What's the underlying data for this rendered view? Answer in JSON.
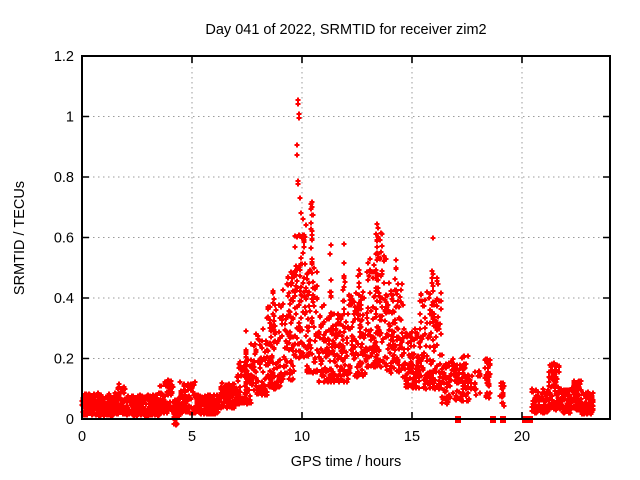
{
  "window": {
    "background": "#ffffff"
  },
  "chart_data": {
    "type": "scatter",
    "title": "Day 041 of 2022, SRMTID for receiver zim2",
    "xlabel": "GPS time / hours",
    "ylabel": "SRMTID / TECUs",
    "xlim": [
      0,
      24
    ],
    "ylim": [
      0,
      1.2
    ],
    "xticks": [
      0,
      5,
      10,
      15,
      20
    ],
    "yticks": [
      0,
      0.2,
      0.4,
      0.6,
      0.8,
      1,
      1.2
    ],
    "ytick_labels": [
      "0",
      "0.2",
      "0.4",
      "0.6",
      "0.8",
      "1",
      "1.2"
    ],
    "grid": {
      "visible": true,
      "style": "dotted",
      "color": "#9b9b9b",
      "x_lines": [
        5,
        10,
        15,
        20
      ],
      "y_lines": [
        0.2,
        0.4,
        0.6,
        0.8,
        1.0
      ]
    },
    "legend": {
      "visible": false
    },
    "series": [
      {
        "name": "SRMTID",
        "marker": "plus",
        "color": "#ff0000"
      }
    ],
    "marker_color": "#ff0000",
    "axis_color": "#000000",
    "band_segments": [
      [
        0.0,
        1.6,
        0.01,
        0.085,
        210,
        1.2
      ],
      [
        1.6,
        1.95,
        0.015,
        0.115,
        46,
        1.4
      ],
      [
        1.95,
        3.5,
        0.01,
        0.08,
        200,
        1.2
      ],
      [
        3.5,
        4.15,
        0.02,
        0.13,
        85,
        1.4
      ],
      [
        4.15,
        4.45,
        -0.022,
        0.07,
        40,
        1.0
      ],
      [
        4.45,
        5.15,
        0.02,
        0.125,
        90,
        1.4
      ],
      [
        5.15,
        6.3,
        0.015,
        0.08,
        150,
        1.2
      ],
      [
        6.3,
        7.0,
        0.035,
        0.12,
        90,
        1.2
      ],
      [
        7.0,
        7.7,
        0.05,
        0.2,
        90,
        1.5
      ],
      [
        7.7,
        8.4,
        0.08,
        0.3,
        90,
        1.6
      ],
      [
        8.4,
        9.1,
        0.1,
        0.38,
        90,
        1.6
      ],
      [
        9.1,
        9.65,
        0.13,
        0.48,
        75,
        1.5
      ],
      [
        9.65,
        10.15,
        0.2,
        0.62,
        80,
        1.3
      ],
      [
        10.15,
        10.75,
        0.15,
        0.5,
        80,
        1.6
      ],
      [
        10.75,
        11.45,
        0.12,
        0.38,
        90,
        1.5
      ],
      [
        11.45,
        12.1,
        0.12,
        0.35,
        85,
        1.4
      ],
      [
        12.1,
        12.9,
        0.14,
        0.42,
        105,
        1.5
      ],
      [
        12.9,
        13.85,
        0.17,
        0.55,
        130,
        1.5
      ],
      [
        13.85,
        14.6,
        0.15,
        0.45,
        100,
        1.5
      ],
      [
        14.6,
        15.35,
        0.1,
        0.3,
        100,
        1.3
      ],
      [
        15.35,
        16.0,
        0.1,
        0.42,
        80,
        1.5
      ],
      [
        16.0,
        16.35,
        0.1,
        0.45,
        45,
        1.6
      ],
      [
        16.35,
        17.1,
        0.05,
        0.2,
        70,
        1.3
      ],
      [
        17.1,
        17.6,
        0.06,
        0.21,
        45,
        1.3
      ],
      [
        17.6,
        18.1,
        0.07,
        0.16,
        18,
        1.0
      ],
      [
        18.3,
        18.55,
        0.07,
        0.2,
        30,
        1.2
      ],
      [
        19.0,
        19.2,
        0.04,
        0.12,
        15,
        1.0
      ],
      [
        20.45,
        21.2,
        0.02,
        0.1,
        100,
        1.2
      ],
      [
        21.2,
        21.7,
        0.03,
        0.185,
        70,
        1.4
      ],
      [
        21.7,
        22.25,
        0.02,
        0.1,
        70,
        1.2
      ],
      [
        22.25,
        22.7,
        0.03,
        0.14,
        60,
        1.4
      ],
      [
        22.7,
        23.25,
        0.015,
        0.09,
        70,
        1.2
      ]
    ],
    "spike_columns": [
      [
        7.45,
        0.18,
        0.3,
        6
      ],
      [
        8.7,
        0.3,
        0.43,
        8
      ],
      [
        9.5,
        0.35,
        0.5,
        8
      ],
      [
        10.45,
        0.5,
        0.72,
        14
      ],
      [
        11.3,
        0.38,
        0.59,
        8
      ],
      [
        11.9,
        0.35,
        0.6,
        10
      ],
      [
        12.6,
        0.35,
        0.5,
        8
      ],
      [
        13.4,
        0.45,
        0.65,
        14
      ],
      [
        13.6,
        0.4,
        0.62,
        10
      ],
      [
        14.25,
        0.4,
        0.55,
        8
      ],
      [
        15.95,
        0.3,
        0.65,
        14
      ],
      [
        16.15,
        0.25,
        0.55,
        8
      ],
      [
        17.35,
        0.1,
        0.21,
        8
      ],
      [
        18.45,
        0.08,
        0.2,
        8
      ]
    ],
    "outlier_points": [
      [
        9.82,
        1.054
      ],
      [
        9.84,
        1.04
      ],
      [
        9.85,
        1.008
      ],
      [
        9.86,
        0.995
      ],
      [
        9.79,
        0.906
      ],
      [
        9.77,
        0.873
      ],
      [
        9.84,
        0.787
      ],
      [
        9.8,
        0.777
      ],
      [
        9.9,
        0.73
      ],
      [
        9.95,
        0.68
      ],
      [
        10.05,
        0.66
      ],
      [
        10.2,
        0.64
      ],
      [
        10.44,
        0.717
      ],
      [
        10.46,
        0.7
      ],
      [
        4.25,
        -0.02
      ],
      [
        4.3,
        -0.015
      ],
      [
        21.45,
        0.185
      ],
      [
        21.5,
        0.175
      ]
    ],
    "zero_marker_hours": [
      17.07,
      18.68,
      19.12,
      20.14,
      20.36
    ]
  }
}
